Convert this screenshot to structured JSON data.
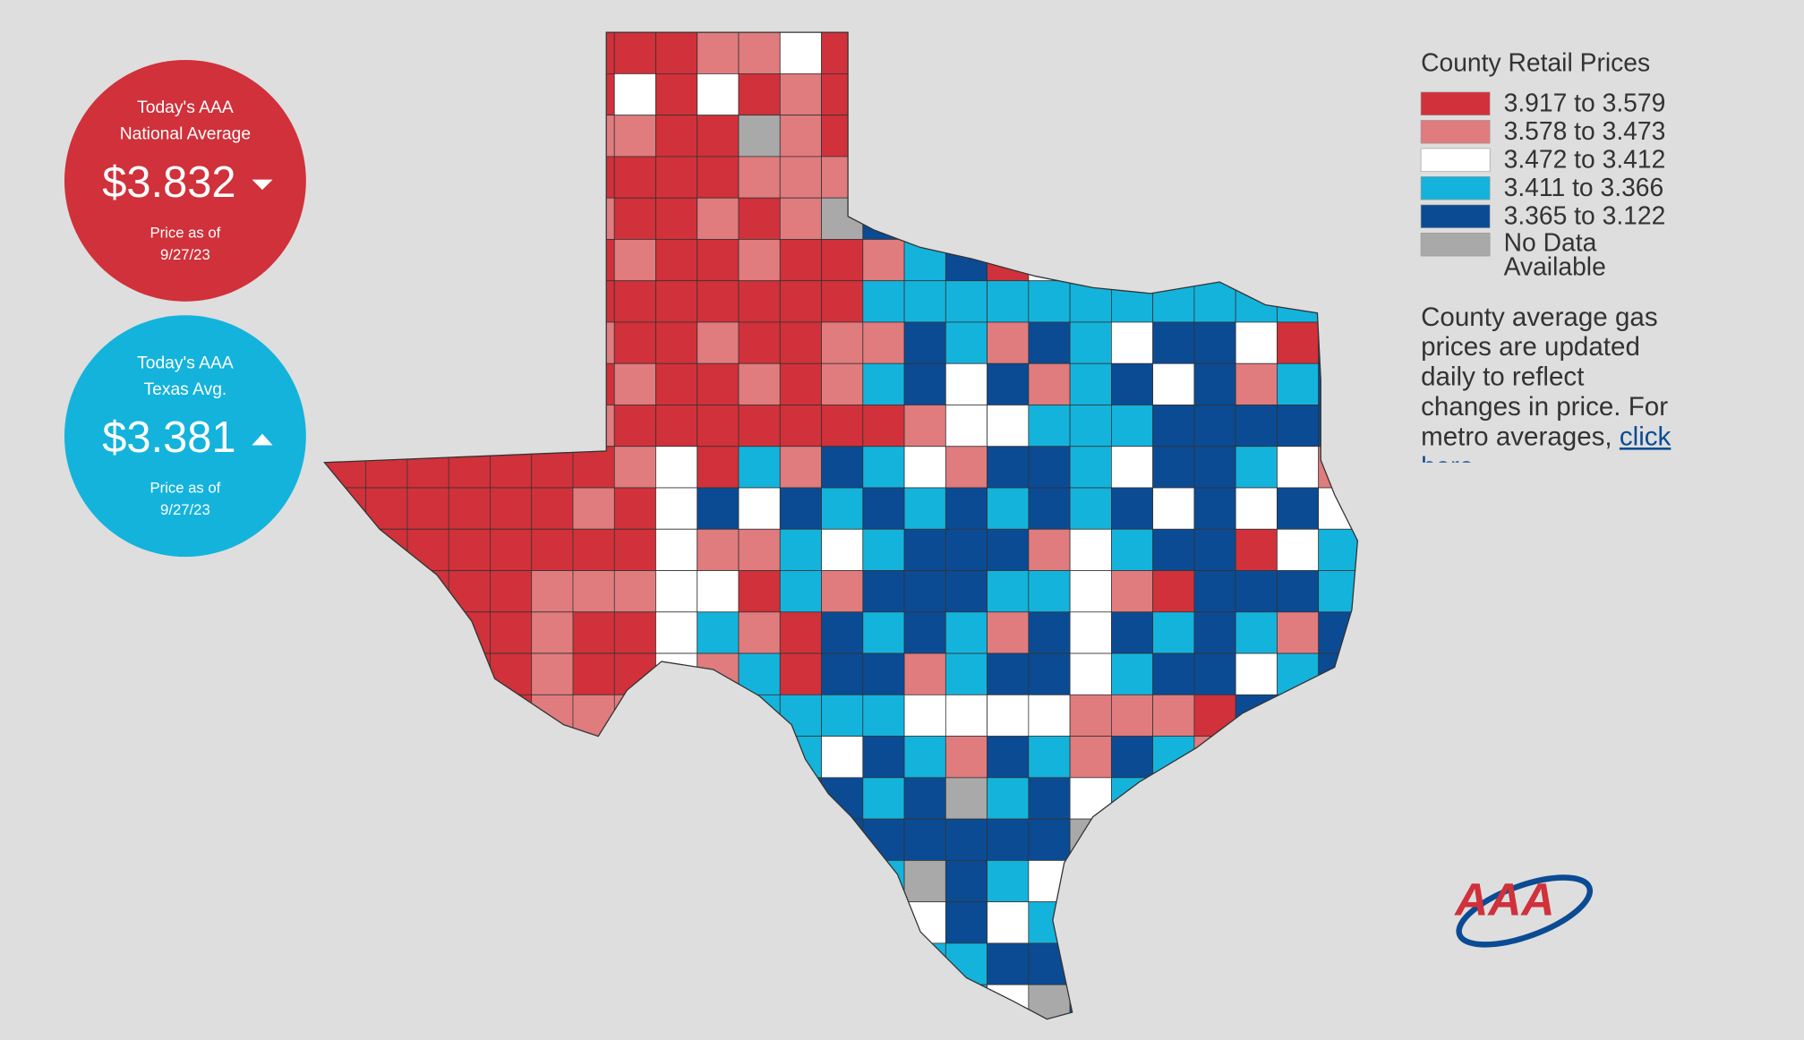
{
  "national": {
    "line1": "Today's AAA",
    "line2": "National Average",
    "price": "$3.832",
    "as_of": "Price as of",
    "date": "9/27/23",
    "color": "#d0313a"
  },
  "texas": {
    "line1": "Today's AAA",
    "line2": "Texas Avg.",
    "price": "$3.381",
    "as_of": "Price as of",
    "date": "9/27/23",
    "color": "#14b3dc"
  },
  "legend": {
    "title": "County Retail Prices",
    "items": [
      {
        "label": "3.917 to 3.579",
        "color": "#d0313a"
      },
      {
        "label": "3.578 to 3.473",
        "color": "#e07b7e"
      },
      {
        "label": "3.472 to 3.412",
        "color": "#ffffff"
      },
      {
        "label": "3.411 to 3.366",
        "color": "#14b3dc"
      },
      {
        "label": "3.365 to 3.122",
        "color": "#0b4b93"
      },
      {
        "label": "No Data Available",
        "color": "#a9a9a9"
      }
    ]
  },
  "note": {
    "text": "County average gas prices are updated daily to reflect changes in price. For metro averages,",
    "link": "click here",
    "end": "."
  },
  "logo": "AAA"
}
